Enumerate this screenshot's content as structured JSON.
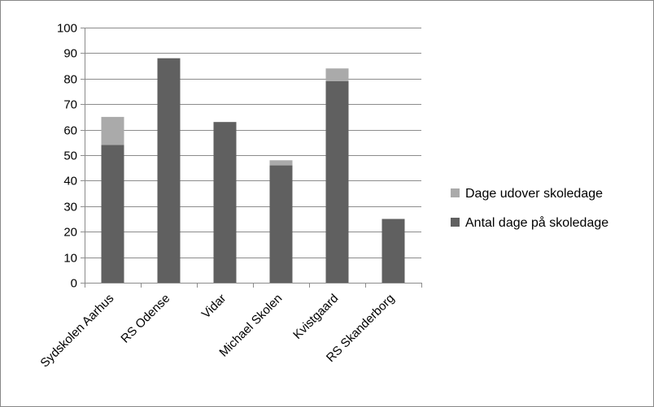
{
  "chart_data": {
    "type": "bar",
    "stacked": true,
    "categories": [
      "Sydskolen Aarhus",
      "RS Odense",
      "Vidar",
      "Michael Skolen",
      "Kvistgaard",
      "RS Skanderborg"
    ],
    "series": [
      {
        "name": "Antal dage på skoledage",
        "values": [
          54,
          88,
          63,
          46,
          79,
          25
        ],
        "color": "#606060"
      },
      {
        "name": "Dage udover skoledage",
        "values": [
          11,
          0,
          0,
          2,
          5,
          0
        ],
        "color": "#aaaaaa"
      }
    ],
    "ylim": [
      0,
      100
    ],
    "yticks": [
      0,
      10,
      20,
      30,
      40,
      50,
      60,
      70,
      80,
      90,
      100
    ],
    "grid": true,
    "legend_position": "right",
    "legend_order": [
      1,
      0
    ]
  }
}
